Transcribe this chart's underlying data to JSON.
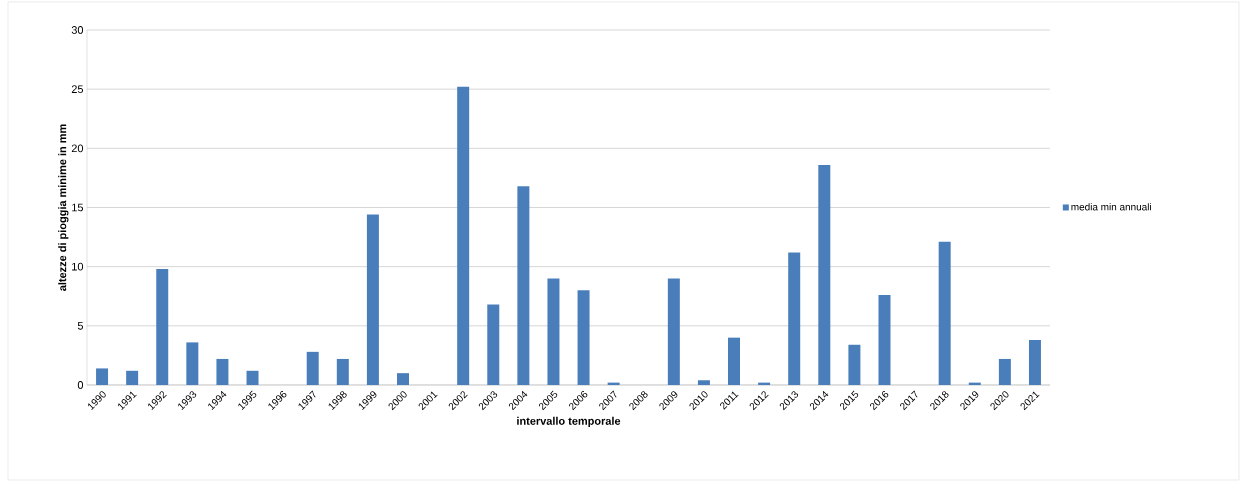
{
  "chart_data": {
    "type": "bar",
    "xlabel": "intervallo temporale",
    "ylabel": "altezze di pioggia minime in mm",
    "categories": [
      "1990",
      "1991",
      "1992",
      "1993",
      "1994",
      "1995",
      "1996",
      "1997",
      "1998",
      "1999",
      "2000",
      "2001",
      "2002",
      "2003",
      "2004",
      "2005",
      "2006",
      "2007",
      "2008",
      "2009",
      "2010",
      "2011",
      "2012",
      "2013",
      "2014",
      "2015",
      "2016",
      "2017",
      "2018",
      "2019",
      "2020",
      "2021"
    ],
    "series": [
      {
        "name": "media min annuali",
        "color": "#4a7ebb",
        "values": [
          1.4,
          1.2,
          9.8,
          3.6,
          2.2,
          1.2,
          0,
          2.8,
          2.2,
          14.4,
          1.0,
          0,
          25.2,
          6.8,
          16.8,
          9.0,
          8.0,
          0.2,
          0,
          9.0,
          0.4,
          4.0,
          0.2,
          11.2,
          18.6,
          3.4,
          7.6,
          0,
          12.1,
          0.2,
          2.2,
          3.8
        ]
      }
    ],
    "ylim": [
      0,
      30
    ],
    "yticks": [
      0,
      5,
      10,
      15,
      20,
      25,
      30
    ],
    "grid": "y",
    "legend": "right"
  }
}
